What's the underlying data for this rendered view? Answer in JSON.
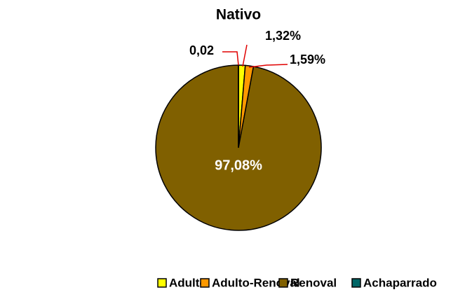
{
  "chart_data": {
    "type": "pie",
    "title": "Nativo",
    "categories": [
      "Adulto",
      "Adulto-Renoval",
      "Renoval",
      "Achaparrado"
    ],
    "values": [
      1.32,
      1.59,
      97.08,
      0.02
    ],
    "value_labels": [
      "1,32%",
      "1,59%",
      "97,08%",
      "0,02"
    ],
    "colors": [
      "#ffff00",
      "#ff9900",
      "#806000",
      "#006666"
    ],
    "legend": "bottom"
  }
}
